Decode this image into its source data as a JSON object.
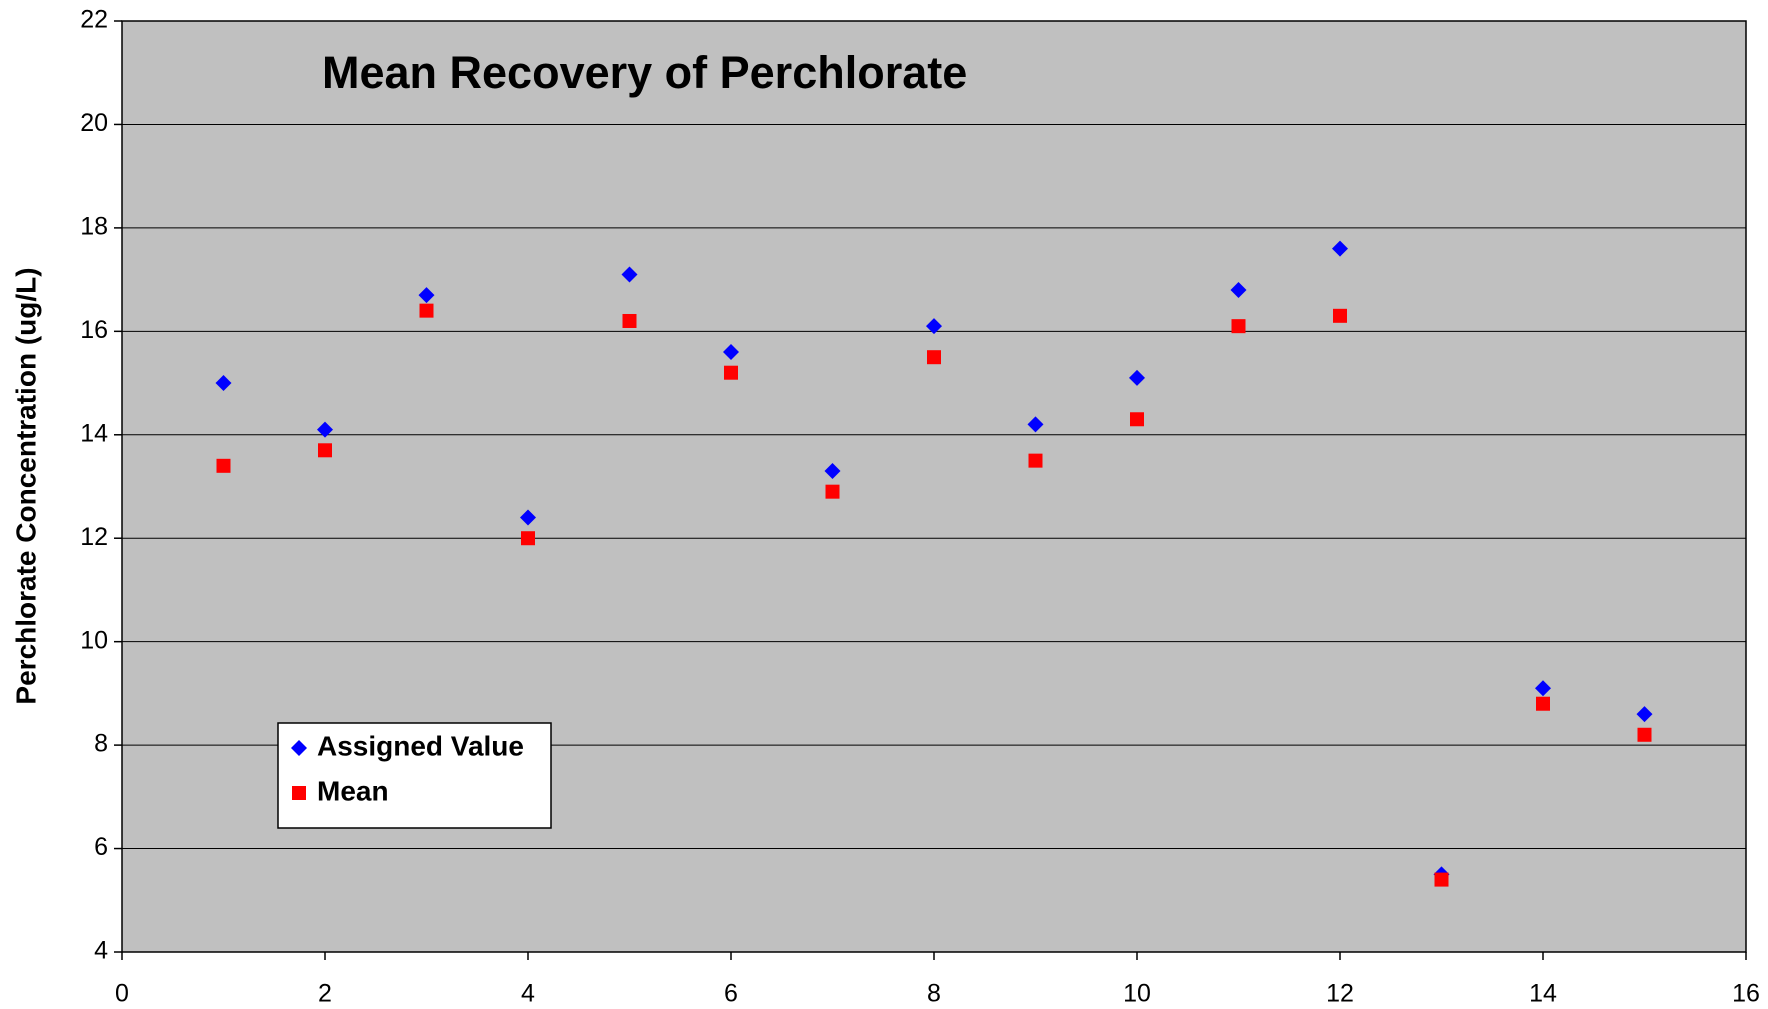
{
  "chart_data": {
    "type": "scatter",
    "title": "Mean Recovery of Perchlorate",
    "y_label": "Perchlorate Concentration (ug/L)",
    "x": [
      1,
      2,
      3,
      4,
      5,
      6,
      7,
      8,
      9,
      10,
      11,
      12,
      13,
      14,
      15
    ],
    "series": [
      {
        "name": "Assigned Value",
        "color": "#0000ff",
        "marker": "diamond",
        "values": [
          15.0,
          14.1,
          16.7,
          12.4,
          17.1,
          15.6,
          13.3,
          16.1,
          14.2,
          15.1,
          16.8,
          17.6,
          5.5,
          9.1,
          8.6
        ]
      },
      {
        "name": "Mean",
        "color": "#ff0000",
        "marker": "square",
        "values": [
          13.4,
          13.7,
          16.4,
          12.0,
          16.2,
          15.2,
          12.9,
          15.5,
          13.5,
          14.3,
          16.1,
          16.3,
          5.4,
          8.8,
          8.2
        ]
      }
    ],
    "xlim": [
      0,
      16
    ],
    "xticks": [
      0,
      2,
      4,
      6,
      8,
      10,
      12,
      14,
      16
    ],
    "ylim": [
      4,
      22
    ],
    "yticks": [
      4,
      6,
      8,
      10,
      12,
      14,
      16,
      18,
      20,
      22
    ],
    "grid": true,
    "legend": "lower left",
    "title_color": "#0000ff",
    "plot_background": "#c0c0c0"
  }
}
